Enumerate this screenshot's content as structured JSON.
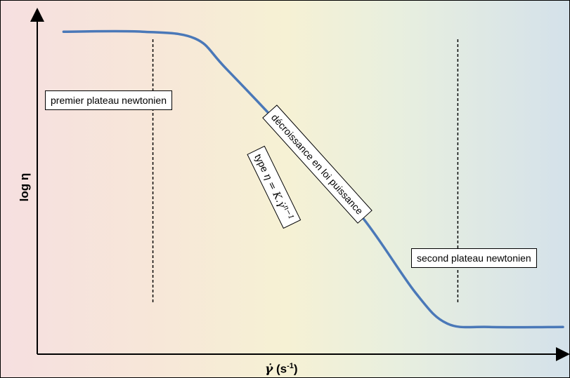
{
  "chart_data": {
    "type": "line",
    "xlabel": "γ̇ (s-1)",
    "xlabel_parts": {
      "symbol": "γ̇",
      "unit_base": "(s",
      "unit_exp": "-1",
      "unit_close": ")"
    },
    "ylabel": "log η",
    "x_scale": "log",
    "y_scale": "log",
    "grid": false,
    "series": [
      {
        "points": [
          [
            0.05,
            0.95
          ],
          [
            0.2,
            0.95
          ],
          [
            0.3,
            0.93
          ],
          [
            0.36,
            0.84
          ],
          [
            0.5,
            0.61
          ],
          [
            0.62,
            0.4
          ],
          [
            0.72,
            0.18
          ],
          [
            0.78,
            0.09
          ],
          [
            0.86,
            0.08
          ],
          [
            1.0,
            0.08
          ]
        ]
      }
    ],
    "vlines": [
      0.22,
      0.8
    ],
    "annotations": {
      "first_plateau": "premier plateau newtonien",
      "power_law": "décroissance en loi puissance",
      "power_law_formula_prefix": "type ",
      "power_law_formula": "η = K.γ̇",
      "power_law_formula_exp": "n−1",
      "second_plateau": "second plateau newtonien"
    }
  },
  "colors": {
    "curve": "#4a78b8",
    "axis": "#000000",
    "dashes": "#000000"
  }
}
